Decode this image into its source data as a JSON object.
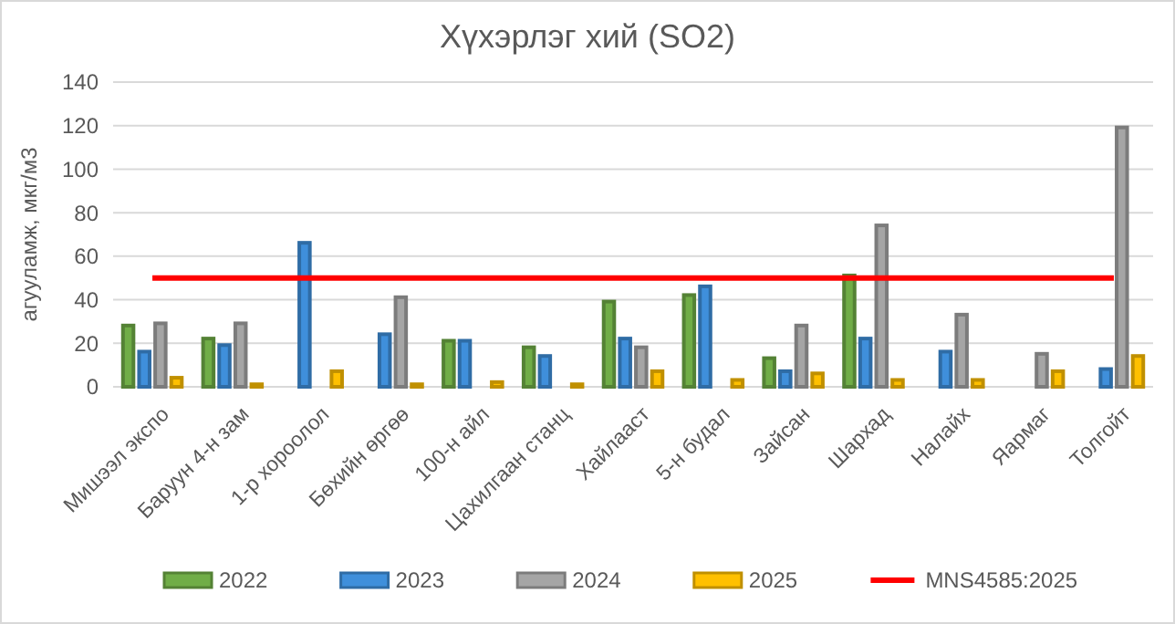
{
  "chart_data": {
    "type": "bar",
    "title": "Хүхэрлэг хий (SO2)",
    "ylabel": "агууламж, мкг/м3",
    "categories": [
      "Мишээл экспо",
      "Баруун 4-н зам",
      "1-р хороолол",
      "Бөхийн өргөө",
      "100-н айл",
      "Цахилгаан станц",
      "Хайлааст",
      "5-н будал",
      "Зайсан",
      "Шархад",
      "Налайх",
      "Яармаг",
      "Толгойт"
    ],
    "series": [
      {
        "name": "2022",
        "color": "#70ad47",
        "values": [
          29,
          23,
          null,
          null,
          22,
          19,
          40,
          43,
          14,
          52,
          null,
          null,
          null
        ]
      },
      {
        "name": "2023",
        "color": "#3f8fdb",
        "values": [
          17,
          20,
          67,
          25,
          22,
          15,
          23,
          47,
          8,
          23,
          17,
          null,
          9
        ]
      },
      {
        "name": "2024",
        "color": "#a5a5a5",
        "values": [
          30,
          30,
          null,
          42,
          null,
          null,
          19,
          null,
          29,
          75,
          34,
          16,
          120
        ]
      },
      {
        "name": "2025",
        "color": "#ffc000",
        "values": [
          5,
          2,
          8,
          2,
          3,
          2,
          8,
          4,
          7,
          4,
          4,
          8,
          15
        ]
      },
      {
        "name": "MNS4585:2025",
        "type": "line",
        "color": "#ff0000",
        "values": [
          50,
          50,
          50,
          50,
          50,
          50,
          50,
          50,
          50,
          50,
          50,
          50,
          50
        ]
      }
    ],
    "ylim": [
      0,
      140
    ],
    "yticks": [
      0,
      20,
      40,
      60,
      80,
      100,
      120,
      140
    ],
    "grid": "y",
    "legend": "bottom"
  }
}
